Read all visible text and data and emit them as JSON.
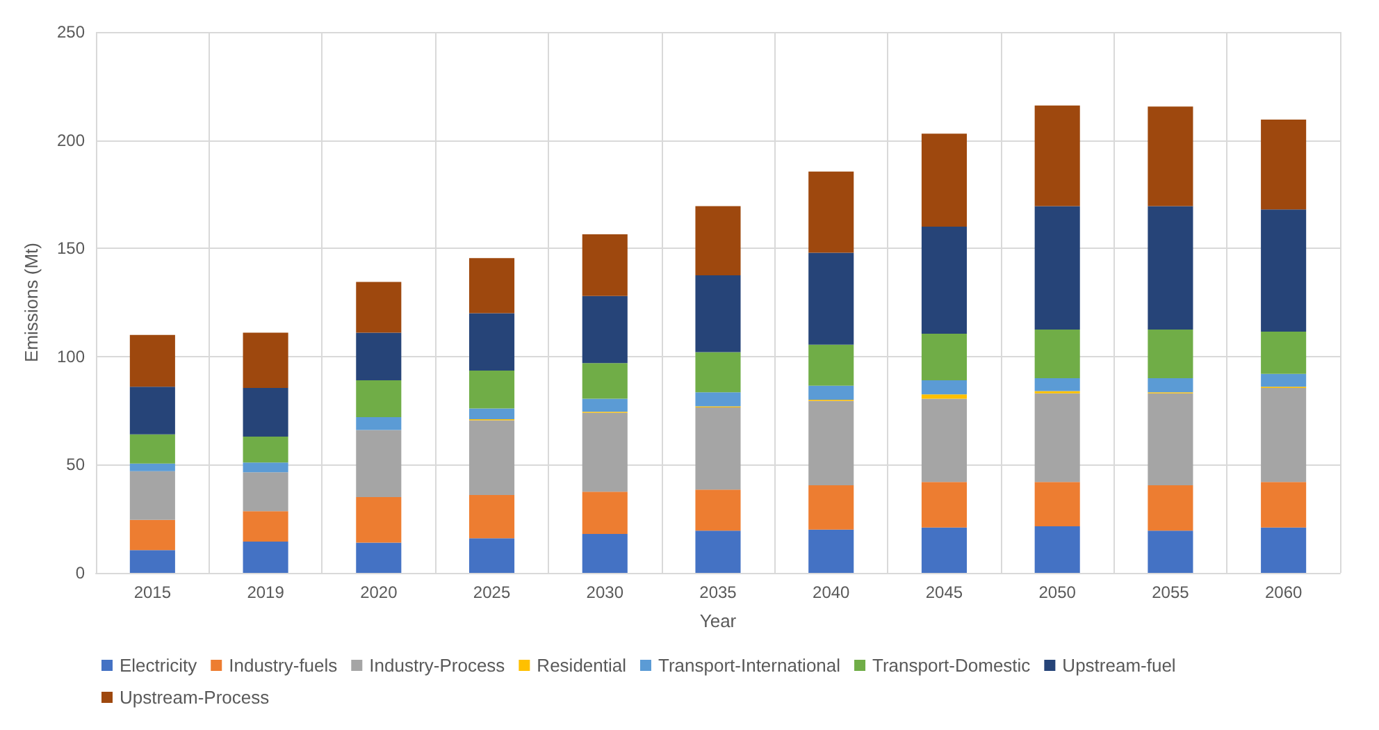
{
  "chart_data": {
    "type": "bar",
    "stacked": true,
    "xlabel": "Year",
    "ylabel": "Emissions (Mt)",
    "categories": [
      "2015",
      "2019",
      "2020",
      "2025",
      "2030",
      "2035",
      "2040",
      "2045",
      "2050",
      "2055",
      "2060"
    ],
    "series": [
      {
        "name": "Electricity",
        "color": "#4472c4",
        "values": [
          10.5,
          14.5,
          14,
          16,
          18,
          19.5,
          20,
          21,
          21.5,
          19.5,
          21
        ]
      },
      {
        "name": "Industry-fuels",
        "color": "#ed7d31",
        "values": [
          14,
          14,
          21,
          20,
          19.5,
          19,
          20.5,
          21,
          20.5,
          21,
          21
        ]
      },
      {
        "name": "Industry-Process",
        "color": "#a5a5a5",
        "values": [
          22.5,
          18,
          31,
          34.5,
          36.5,
          38,
          39,
          38.5,
          41,
          42.5,
          43.5
        ]
      },
      {
        "name": "Residential",
        "color": "#ffc000",
        "values": [
          0,
          0,
          0,
          0.5,
          0.5,
          0.5,
          0.5,
          2,
          1,
          0.5,
          0.5
        ]
      },
      {
        "name": "Transport-International",
        "color": "#5b9bd5",
        "values": [
          3.5,
          4.5,
          6,
          5,
          6,
          6.5,
          6.5,
          6.5,
          6,
          6.5,
          6
        ]
      },
      {
        "name": "Transport-Domestic",
        "color": "#70ad47",
        "values": [
          13.5,
          12,
          17,
          17.5,
          16.5,
          18.5,
          19,
          21.5,
          22.5,
          22.5,
          19.5
        ]
      },
      {
        "name": "Upstream-fuel",
        "color": "#264478",
        "values": [
          22,
          22.5,
          22,
          26.5,
          31,
          35.5,
          42.5,
          49.5,
          57,
          57,
          56.5
        ]
      },
      {
        "name": "Upstream-Process",
        "color": "#9e480e",
        "values": [
          24,
          25.5,
          23.5,
          25.5,
          28.5,
          32,
          37.5,
          43,
          46.5,
          46,
          41.5
        ]
      }
    ],
    "ylim": [
      0,
      250
    ],
    "yticks": [
      0,
      50,
      100,
      150,
      200,
      250
    ],
    "grid": true,
    "legend": "bottom"
  }
}
